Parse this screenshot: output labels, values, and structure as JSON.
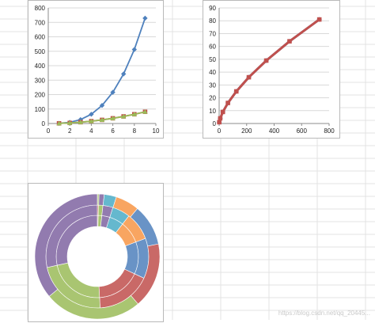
{
  "colors": {
    "series_blue": "#4f81bd",
    "series_red": "#c0504d",
    "series_green": "#9bbb59",
    "series_orange": "#f79646",
    "series_purple": "#8064a2",
    "series_teal": "#4bacc6",
    "gridline": "#d9d9d9",
    "axis": "#8c8c8c"
  },
  "watermark": "https://blog.csdn.net/qq_20445...",
  "chart_data": [
    {
      "type": "line",
      "xlim": [
        0,
        10
      ],
      "ylim": [
        0,
        800
      ],
      "xticks": [
        0,
        2,
        4,
        6,
        8,
        10
      ],
      "yticks": [
        0,
        100,
        200,
        300,
        400,
        500,
        600,
        700,
        800
      ],
      "grid": true,
      "x": [
        1,
        2,
        3,
        4,
        5,
        6,
        7,
        8,
        9
      ],
      "series": [
        {
          "color": "#4f81bd",
          "marker": "diamond",
          "values": [
            1,
            8,
            27,
            64,
            125,
            216,
            343,
            512,
            729
          ]
        },
        {
          "color": "#c0504d",
          "marker": "square",
          "values": [
            1,
            4,
            9,
            16,
            25,
            36,
            49,
            64,
            81
          ]
        },
        {
          "color": "#9bbb59",
          "marker": "triangle",
          "values": [
            1,
            4,
            9,
            16,
            25,
            36,
            49,
            64,
            81
          ]
        }
      ]
    },
    {
      "type": "scatter",
      "xlim": [
        0,
        800
      ],
      "ylim": [
        0,
        90
      ],
      "xticks": [
        0,
        200,
        400,
        600,
        800
      ],
      "yticks": [
        0,
        10,
        20,
        30,
        40,
        50,
        60,
        70,
        80,
        90
      ],
      "grid": true,
      "series": [
        {
          "color": "#4f81bd",
          "marker": "diamond",
          "x": [
            1,
            8,
            27,
            64,
            125,
            216,
            343,
            512,
            729
          ],
          "y": [
            1,
            4,
            9,
            16,
            25,
            36,
            49,
            64,
            81
          ]
        },
        {
          "color": "#c0504d",
          "marker": "square",
          "x": [
            1,
            8,
            27,
            64,
            125,
            216,
            343,
            512,
            729
          ],
          "y": [
            1,
            4,
            9,
            16,
            25,
            36,
            49,
            64,
            81
          ]
        }
      ]
    },
    {
      "type": "pie",
      "style": "doughnut",
      "rings": [
        {
          "values": [
            1,
            4,
            9,
            16,
            25,
            36,
            49,
            64,
            81
          ]
        },
        {
          "values": [
            1,
            4,
            9,
            16,
            25,
            36,
            49,
            64,
            81
          ]
        },
        {
          "values": [
            1,
            8,
            27,
            64,
            125,
            216,
            343,
            512,
            729
          ]
        }
      ],
      "colors": [
        "#c0504d",
        "#9bbb59",
        "#8064a2",
        "#4bacc6",
        "#f79646",
        "#4f81bd",
        "#c0504d",
        "#9bbb59",
        "#8064a2"
      ]
    }
  ]
}
